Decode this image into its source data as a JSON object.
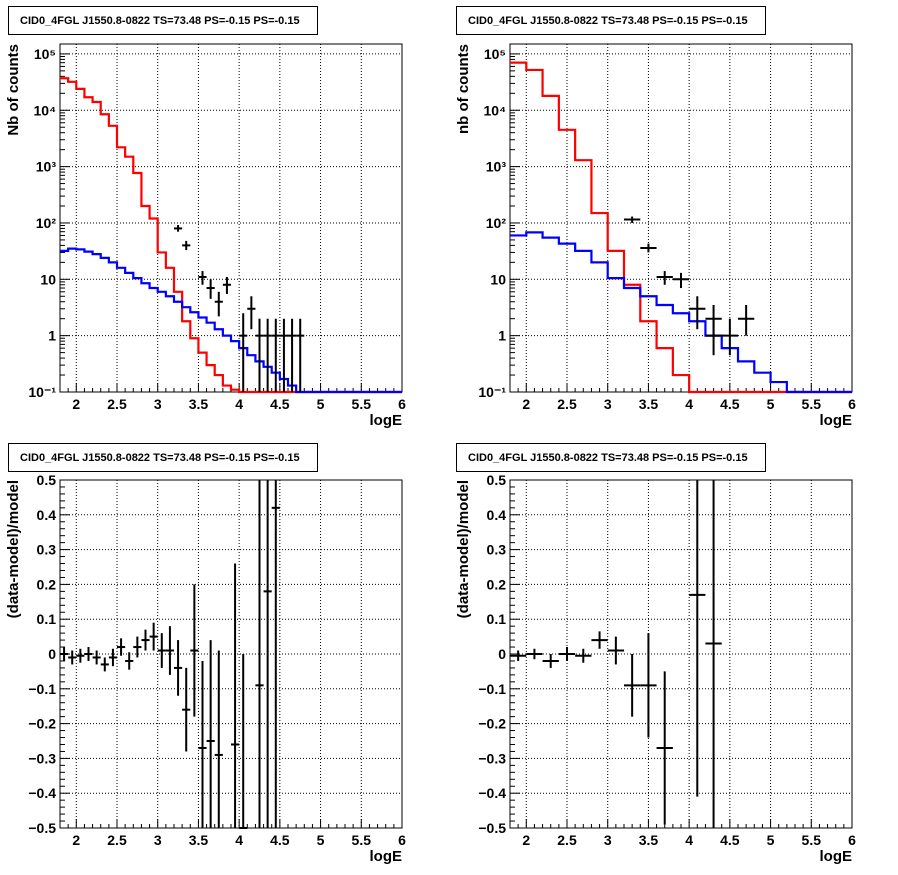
{
  "chart_data": [
    {
      "type": "step-histogram",
      "title": "CID0_4FGL J1550.8-0822 TS=73.48 PS=-0.15 PS=-0.15",
      "xlabel": "logE",
      "ylabel": "Nb of counts",
      "xlim": [
        1.8,
        6.0
      ],
      "ylim": [
        0.1,
        150000
      ],
      "yscale": "log",
      "grid": true,
      "x_ticks": [
        2,
        2.5,
        3,
        3.5,
        4,
        4.5,
        5,
        5.5,
        6
      ],
      "x_tick_labels": [
        "2",
        "2.5",
        "3",
        "3.5",
        "4",
        "4.5",
        "5",
        "5.5",
        "6"
      ],
      "y_ticks": [
        0.1,
        1,
        10,
        100,
        1000,
        10000,
        100000
      ],
      "y_tick_labels": [
        "10⁻¹",
        "1",
        "10",
        "10²",
        "10³",
        "10⁴",
        "10⁵"
      ],
      "bin_edges": [
        1.8,
        1.9,
        2.0,
        2.1,
        2.2,
        2.3,
        2.4,
        2.5,
        2.6,
        2.7,
        2.8,
        2.9,
        3.0,
        3.1,
        3.2,
        3.3,
        3.4,
        3.5,
        3.6,
        3.7,
        3.8,
        3.9,
        4.0,
        4.1,
        4.2,
        4.3,
        4.4,
        4.5,
        4.6,
        4.7,
        4.8,
        4.9,
        5.0,
        5.1,
        5.2,
        5.3,
        5.4,
        5.5,
        5.6,
        5.7,
        5.8,
        5.9,
        6.0
      ],
      "series": [
        {
          "color": "#ff0000",
          "values": [
            37000,
            32000,
            24000,
            17000,
            14000,
            8500,
            5300,
            2200,
            1500,
            770,
            200,
            120,
            30,
            16,
            6,
            1.8,
            0.9,
            0.5,
            0.3,
            0.2,
            0.13,
            0.11,
            0.1,
            0.1,
            0.1,
            0.1,
            0.1,
            0.1,
            0.1,
            0.1,
            0.1,
            0.1,
            0.1,
            0.1,
            0.1,
            0.1,
            0.1,
            0.1,
            0.1,
            0.1,
            0.1,
            0.1
          ]
        },
        {
          "color": "#0000ff",
          "values": [
            32,
            35,
            34,
            31,
            28,
            24,
            20,
            16,
            13,
            10.5,
            8.5,
            7,
            6,
            5,
            4,
            3.2,
            2.6,
            2.1,
            1.7,
            1.3,
            1.0,
            0.8,
            0.6,
            0.45,
            0.35,
            0.28,
            0.22,
            0.17,
            0.13,
            0.1,
            0.1,
            0.1,
            0.1,
            0.1,
            0.1,
            0.1,
            0.1,
            0.1,
            0.1,
            0.1,
            0.1,
            0.1
          ]
        }
      ],
      "points": [
        {
          "x": 3.25,
          "y": 80,
          "ylo": 70,
          "yhi": 92
        },
        {
          "x": 3.35,
          "y": 40,
          "ylo": 33,
          "yhi": 48
        },
        {
          "x": 3.55,
          "y": 11,
          "ylo": 8,
          "yhi": 14
        },
        {
          "x": 3.65,
          "y": 7,
          "ylo": 4.5,
          "yhi": 10
        },
        {
          "x": 3.75,
          "y": 4,
          "ylo": 2.2,
          "yhi": 6
        },
        {
          "x": 3.85,
          "y": 8,
          "ylo": 5.5,
          "yhi": 11
        },
        {
          "x": 4.15,
          "y": 3,
          "ylo": 1.3,
          "yhi": 5
        },
        {
          "x": 4.05,
          "y": 1,
          "ylo": 0.1,
          "yhi": 2.5
        },
        {
          "x": 4.25,
          "y": 1,
          "ylo": 0.1,
          "yhi": 2
        },
        {
          "x": 4.35,
          "y": 1,
          "ylo": 0.1,
          "yhi": 2
        },
        {
          "x": 4.45,
          "y": 1,
          "ylo": 0.1,
          "yhi": 2
        },
        {
          "x": 4.55,
          "y": 1,
          "ylo": 0.1,
          "yhi": 2
        },
        {
          "x": 4.65,
          "y": 1,
          "ylo": 0.1,
          "yhi": 2
        },
        {
          "x": 4.75,
          "y": 1,
          "ylo": 0.1,
          "yhi": 2
        }
      ]
    },
    {
      "type": "step-histogram",
      "title": "CID0_4FGL J1550.8-0822 TS=73.48 PS=-0.15 PS=-0.15",
      "xlabel": "logE",
      "ylabel": "nb of counts",
      "xlim": [
        1.8,
        6.0
      ],
      "ylim": [
        0.1,
        150000
      ],
      "yscale": "log",
      "grid": true,
      "x_ticks": [
        2,
        2.5,
        3,
        3.5,
        4,
        4.5,
        5,
        5.5,
        6
      ],
      "x_tick_labels": [
        "2",
        "2.5",
        "3",
        "3.5",
        "4",
        "4.5",
        "5",
        "5.5",
        "6"
      ],
      "y_ticks": [
        0.1,
        1,
        10,
        100,
        1000,
        10000,
        100000
      ],
      "y_tick_labels": [
        "10⁻¹",
        "1",
        "10",
        "10²",
        "10³",
        "10⁴",
        "10⁵"
      ],
      "bin_edges": [
        1.8,
        2.0,
        2.2,
        2.4,
        2.6,
        2.8,
        3.0,
        3.2,
        3.4,
        3.6,
        3.8,
        4.0,
        4.2,
        4.4,
        4.6,
        4.8,
        5.0,
        5.2,
        5.4,
        5.6,
        5.8,
        6.0
      ],
      "series": [
        {
          "color": "#ff0000",
          "values": [
            70000,
            52000,
            18000,
            4500,
            1300,
            150,
            32,
            8,
            1.8,
            0.6,
            0.2,
            0.1,
            0.1,
            0.1,
            0.1,
            0.1,
            0.1,
            0.1,
            0.1,
            0.1,
            0.1
          ]
        },
        {
          "color": "#0000ff",
          "values": [
            60,
            68,
            55,
            43,
            32,
            20,
            10.5,
            7,
            5,
            3.5,
            2.5,
            1.8,
            1.0,
            0.6,
            0.35,
            0.22,
            0.15,
            0.1,
            0.1,
            0.1,
            0.1
          ]
        }
      ],
      "points": [
        {
          "x": 3.3,
          "y": 115,
          "ylo": 100,
          "yhi": 130
        },
        {
          "x": 3.5,
          "y": 36,
          "ylo": 30,
          "yhi": 43
        },
        {
          "x": 3.7,
          "y": 11,
          "ylo": 8,
          "yhi": 14
        },
        {
          "x": 3.9,
          "y": 10,
          "ylo": 7,
          "yhi": 13
        },
        {
          "x": 4.1,
          "y": 3,
          "ylo": 1.3,
          "yhi": 5
        },
        {
          "x": 4.3,
          "y": 1,
          "ylo": 0.45,
          "yhi": 2
        },
        {
          "x": 4.5,
          "y": 1,
          "ylo": 0.45,
          "yhi": 2
        },
        {
          "x": 4.3,
          "y": 2,
          "ylo": 1,
          "yhi": 3.5
        },
        {
          "x": 4.7,
          "y": 2,
          "ylo": 1,
          "yhi": 3.5
        }
      ]
    },
    {
      "type": "scatter-errorbar",
      "title": "CID0_4FGL J1550.8-0822 TS=73.48 PS=-0.15 PS=-0.15",
      "xlabel": "logE",
      "ylabel": "(data-model)/model",
      "xlim": [
        1.8,
        6.0
      ],
      "ylim": [
        -0.5,
        0.5
      ],
      "grid": true,
      "x_ticks": [
        2,
        2.5,
        3,
        3.5,
        4,
        4.5,
        5,
        5.5,
        6
      ],
      "x_tick_labels": [
        "2",
        "2.5",
        "3",
        "3.5",
        "4",
        "4.5",
        "5",
        "5.5",
        "6"
      ],
      "y_ticks": [
        -0.5,
        -0.4,
        -0.3,
        -0.2,
        -0.1,
        0,
        0.1,
        0.2,
        0.3,
        0.4,
        0.5
      ],
      "y_tick_labels": [
        "−0.5",
        "−0.4",
        "−0.3",
        "−0.2",
        "−0.1",
        "0",
        "0.1",
        "0.2",
        "0.3",
        "0.4",
        "0.5"
      ],
      "points": [
        {
          "x": 1.85,
          "y": 0.0,
          "err": 0.02
        },
        {
          "x": 1.95,
          "y": -0.01,
          "err": 0.02
        },
        {
          "x": 2.05,
          "y": -0.005,
          "err": 0.02
        },
        {
          "x": 2.15,
          "y": 0.0,
          "err": 0.02
        },
        {
          "x": 2.25,
          "y": -0.01,
          "err": 0.02
        },
        {
          "x": 2.35,
          "y": -0.03,
          "err": 0.02
        },
        {
          "x": 2.45,
          "y": -0.01,
          "err": 0.025
        },
        {
          "x": 2.55,
          "y": 0.02,
          "err": 0.025
        },
        {
          "x": 2.65,
          "y": -0.02,
          "err": 0.025
        },
        {
          "x": 2.75,
          "y": 0.02,
          "err": 0.03
        },
        {
          "x": 2.85,
          "y": 0.04,
          "err": 0.03
        },
        {
          "x": 2.95,
          "y": 0.05,
          "err": 0.04
        },
        {
          "x": 3.05,
          "y": 0.01,
          "err": 0.05
        },
        {
          "x": 3.15,
          "y": 0.01,
          "err": 0.07
        },
        {
          "x": 3.25,
          "y": -0.04,
          "err": 0.08
        },
        {
          "x": 3.35,
          "y": -0.16,
          "err": 0.12
        },
        {
          "x": 3.45,
          "y": 0.01,
          "err": 0.19
        },
        {
          "x": 3.55,
          "y": -0.27,
          "err": 0.25
        },
        {
          "x": 3.65,
          "y": -0.25,
          "err": 0.29
        },
        {
          "x": 3.75,
          "y": -0.29,
          "err": 0.3
        },
        {
          "x": 3.95,
          "y": -0.26,
          "err": 0.52
        },
        {
          "x": 4.05,
          "y": -0.5,
          "err": 0.5
        },
        {
          "x": 4.25,
          "y": -0.09,
          "err": 0.7
        },
        {
          "x": 4.35,
          "y": 0.18,
          "err": 0.8
        },
        {
          "x": 4.45,
          "y": 0.42,
          "err": 0.95
        }
      ]
    },
    {
      "type": "scatter-errorbar",
      "title": "CID0_4FGL J1550.8-0822 TS=73.48 PS=-0.15 PS=-0.15",
      "xlabel": "logE",
      "ylabel": "(data-model)/model",
      "xlim": [
        1.8,
        6.0
      ],
      "ylim": [
        -0.5,
        0.5
      ],
      "grid": true,
      "x_ticks": [
        2,
        2.5,
        3,
        3.5,
        4,
        4.5,
        5,
        5.5,
        6
      ],
      "x_tick_labels": [
        "2",
        "2.5",
        "3",
        "3.5",
        "4",
        "4.5",
        "5",
        "5.5",
        "6"
      ],
      "y_ticks": [
        -0.5,
        -0.4,
        -0.3,
        -0.2,
        -0.1,
        0,
        0.1,
        0.2,
        0.3,
        0.4,
        0.5
      ],
      "y_tick_labels": [
        "−0.5",
        "−0.4",
        "−0.3",
        "−0.2",
        "−0.1",
        "0",
        "0.1",
        "0.2",
        "0.3",
        "0.4",
        "0.5"
      ],
      "points": [
        {
          "x": 1.9,
          "y": -0.005,
          "err": 0.015
        },
        {
          "x": 2.1,
          "y": 0.0,
          "err": 0.015
        },
        {
          "x": 2.3,
          "y": -0.02,
          "err": 0.02
        },
        {
          "x": 2.5,
          "y": 0.0,
          "err": 0.02
        },
        {
          "x": 2.7,
          "y": -0.005,
          "err": 0.02
        },
        {
          "x": 2.9,
          "y": 0.04,
          "err": 0.025
        },
        {
          "x": 3.1,
          "y": 0.01,
          "err": 0.04
        },
        {
          "x": 3.3,
          "y": -0.09,
          "err": 0.09
        },
        {
          "x": 3.5,
          "y": -0.09,
          "err": 0.15
        },
        {
          "x": 3.7,
          "y": -0.27,
          "err": 0.22
        },
        {
          "x": 4.1,
          "y": 0.17,
          "err": 0.58
        },
        {
          "x": 4.3,
          "y": 0.03,
          "err": 0.65
        }
      ]
    }
  ]
}
